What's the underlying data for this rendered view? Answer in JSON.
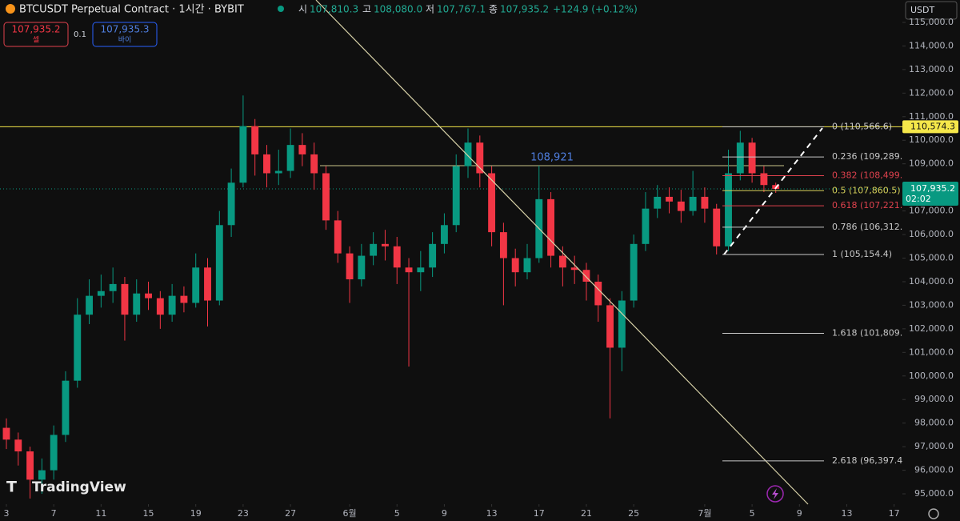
{
  "header": {
    "title": "BTCUSDT Perpetual Contract · 1시간 · BYBIT",
    "open_label": "시",
    "open": "107,810.3",
    "high_label": "고",
    "high": "108,080.0",
    "low_label": "저",
    "low": "107,767.1",
    "close_label": "종",
    "close": "107,935.2",
    "change": "+124.9 (+0.12%)",
    "sell_price": "107,935.2",
    "sell_label": "셀",
    "spread": "0.1",
    "buy_price": "107,935.3",
    "buy_label": "바이",
    "currency": "USDT",
    "logo": "TradingView"
  },
  "chart_data": {
    "type": "candlestick",
    "x": [
      0,
      1,
      2,
      3,
      4,
      5,
      6,
      7,
      8,
      9,
      10,
      11,
      12,
      13,
      14,
      15,
      16,
      17,
      18,
      19,
      20,
      21,
      22,
      23,
      24,
      25,
      26,
      27,
      28,
      29,
      30,
      31,
      32,
      33,
      34,
      35,
      36,
      37,
      38,
      39,
      40,
      41,
      42,
      43,
      44,
      45,
      46,
      47,
      48,
      49,
      50,
      51,
      52,
      53,
      54,
      55,
      56,
      57,
      58,
      59,
      60,
      61,
      62,
      63,
      64,
      65
    ],
    "open": [
      97800,
      97300,
      96800,
      95600,
      96000,
      97500,
      99800,
      102600,
      103400,
      103600,
      103900,
      102600,
      103500,
      103300,
      102600,
      103400,
      103100,
      104600,
      103200,
      106400,
      108200,
      110600,
      109400,
      108600,
      108700,
      109800,
      109400,
      108600,
      106600,
      105200,
      104100,
      105100,
      105600,
      105500,
      104600,
      104400,
      104600,
      105600,
      106400,
      108900,
      109900,
      108600,
      106100,
      105000,
      104400,
      105000,
      107500,
      105100,
      104600,
      104500,
      104000,
      103000,
      101200,
      103200,
      105600,
      107100,
      107600,
      107400,
      107000,
      107600,
      107100,
      105500,
      108600,
      109900,
      108600,
      108100
    ],
    "high": [
      98200,
      97600,
      97000,
      96500,
      97900,
      100200,
      103300,
      104100,
      104300,
      104600,
      104200,
      104100,
      104000,
      103600,
      103900,
      103800,
      105200,
      105000,
      107000,
      108800,
      111900,
      110900,
      109800,
      109600,
      110500,
      110300,
      109900,
      108900,
      107000,
      105500,
      105600,
      106100,
      106200,
      105900,
      105000,
      105300,
      106100,
      106900,
      109400,
      110500,
      110200,
      108900,
      106500,
      105400,
      105600,
      108921,
      107800,
      105500,
      105100,
      104800,
      104300,
      103300,
      103600,
      106000,
      107800,
      108100,
      108000,
      107900,
      108700,
      108000,
      107300,
      109600,
      110400,
      110100,
      108900,
      108200
    ],
    "low": [
      96900,
      96200,
      94800,
      95000,
      95600,
      97200,
      99500,
      102200,
      102900,
      103100,
      101500,
      102300,
      102800,
      102000,
      102300,
      102700,
      102900,
      102100,
      103000,
      105900,
      108000,
      108500,
      108000,
      108100,
      108400,
      108900,
      107900,
      106200,
      104800,
      103100,
      103800,
      104700,
      104900,
      103900,
      100400,
      103600,
      104200,
      105200,
      106100,
      108400,
      108000,
      105500,
      103000,
      103800,
      104100,
      104800,
      104600,
      103800,
      103900,
      103200,
      102300,
      98200,
      100200,
      102900,
      105300,
      106700,
      106900,
      106500,
      106800,
      106500,
      105154.4,
      105300,
      108300,
      108200,
      107800,
      107767.1
    ],
    "close": [
      97300,
      96800,
      95600,
      96000,
      97500,
      99800,
      102600,
      103400,
      103600,
      103900,
      102600,
      103500,
      103300,
      102600,
      103400,
      103100,
      104600,
      103200,
      106400,
      108200,
      110600,
      109400,
      108600,
      108700,
      109800,
      109400,
      108600,
      106600,
      105200,
      104100,
      105100,
      105600,
      105500,
      104600,
      104400,
      104600,
      105600,
      106400,
      108900,
      109900,
      108600,
      106100,
      105000,
      104400,
      105000,
      107500,
      105100,
      104600,
      104500,
      104000,
      103000,
      101200,
      103200,
      105600,
      107100,
      107600,
      107400,
      107000,
      107600,
      107100,
      105500,
      108600,
      109900,
      108600,
      108100,
      107935.2
    ],
    "up_color": "#089981",
    "down_color": "#f23645",
    "xlim": [
      -0.54,
      75.7
    ],
    "xticks": [
      {
        "value": 0,
        "label": "3"
      },
      {
        "value": 4,
        "label": "7"
      },
      {
        "value": 8,
        "label": "11"
      },
      {
        "value": 12,
        "label": "15"
      },
      {
        "value": 16,
        "label": "19"
      },
      {
        "value": 20,
        "label": "23"
      },
      {
        "value": 24,
        "label": "27"
      },
      {
        "value": 29,
        "label": "6월"
      },
      {
        "value": 33,
        "label": "5"
      },
      {
        "value": 37,
        "label": "9"
      },
      {
        "value": 41,
        "label": "13"
      },
      {
        "value": 45,
        "label": "17"
      },
      {
        "value": 49,
        "label": "21"
      },
      {
        "value": 53,
        "label": "25"
      },
      {
        "value": 59,
        "label": "7월"
      },
      {
        "value": 63,
        "label": "5"
      },
      {
        "value": 67,
        "label": "9"
      },
      {
        "value": 71,
        "label": "13"
      },
      {
        "value": 75,
        "label": "17"
      }
    ],
    "ylim": [
      94560,
      115950
    ],
    "yticks": [
      {
        "value": 95000,
        "label": "95,000.0"
      },
      {
        "value": 96000,
        "label": "96,000.0"
      },
      {
        "value": 97000,
        "label": "97,000.0"
      },
      {
        "value": 98000,
        "label": "98,000.0"
      },
      {
        "value": 99000,
        "label": "99,000.0"
      },
      {
        "value": 100000,
        "label": "100,000.0"
      },
      {
        "value": 101000,
        "label": "101,000.0"
      },
      {
        "value": 102000,
        "label": "102,000.0"
      },
      {
        "value": 103000,
        "label": "103,000.0"
      },
      {
        "value": 104000,
        "label": "104,000.0"
      },
      {
        "value": 105000,
        "label": "105,000.0"
      },
      {
        "value": 106000,
        "label": "106,000.0"
      },
      {
        "value": 107000,
        "label": "107,000.0"
      },
      {
        "value": 108000,
        "label": "108,000.0"
      },
      {
        "value": 109000,
        "label": "109,000.0"
      },
      {
        "value": 110000,
        "label": "110,000.0"
      },
      {
        "value": 111000,
        "label": "111,000.0"
      },
      {
        "value": 112000,
        "label": "112,000.0"
      },
      {
        "value": 113000,
        "label": "113,000.0"
      },
      {
        "value": 114000,
        "label": "114,000.0"
      },
      {
        "value": 115000,
        "label": "115,000.0"
      }
    ],
    "fib_levels": [
      {
        "price": 110566.6,
        "label": "0 (110,566.6)",
        "color": "#c8c8c8"
      },
      {
        "price": 109289,
        "label": "0.236 (109,289.",
        "color": "#c8c8c8"
      },
      {
        "price": 108499,
        "label": "0.382 (108,499.",
        "color": "#e0424e"
      },
      {
        "price": 107860.5,
        "label": "0.5 (107,860.5)",
        "color": "#d4cf5a"
      },
      {
        "price": 107221,
        "label": "0.618 (107,221.",
        "color": "#e0424e"
      },
      {
        "price": 106312,
        "label": "0.786 (106,312.",
        "color": "#c8c8c8"
      },
      {
        "price": 105154.4,
        "label": "1 (105,154.4)",
        "color": "#c8c8c8"
      },
      {
        "price": 101809,
        "label": "1.618 (101,809.",
        "color": "#c8c8c8"
      },
      {
        "price": 96397.4,
        "label": "2.618 (96,397.4",
        "color": "#c8c8c8"
      }
    ],
    "level_line": {
      "price": 110574.3,
      "label": "110,574.3",
      "color": "#f5e74a"
    },
    "annotation": {
      "price": 108921,
      "text": "108,921",
      "color": "#4f7fe0"
    },
    "last_price": {
      "value": 107935.2,
      "label": "107,935.2",
      "countdown": "02:02",
      "color": "#089981"
    }
  }
}
